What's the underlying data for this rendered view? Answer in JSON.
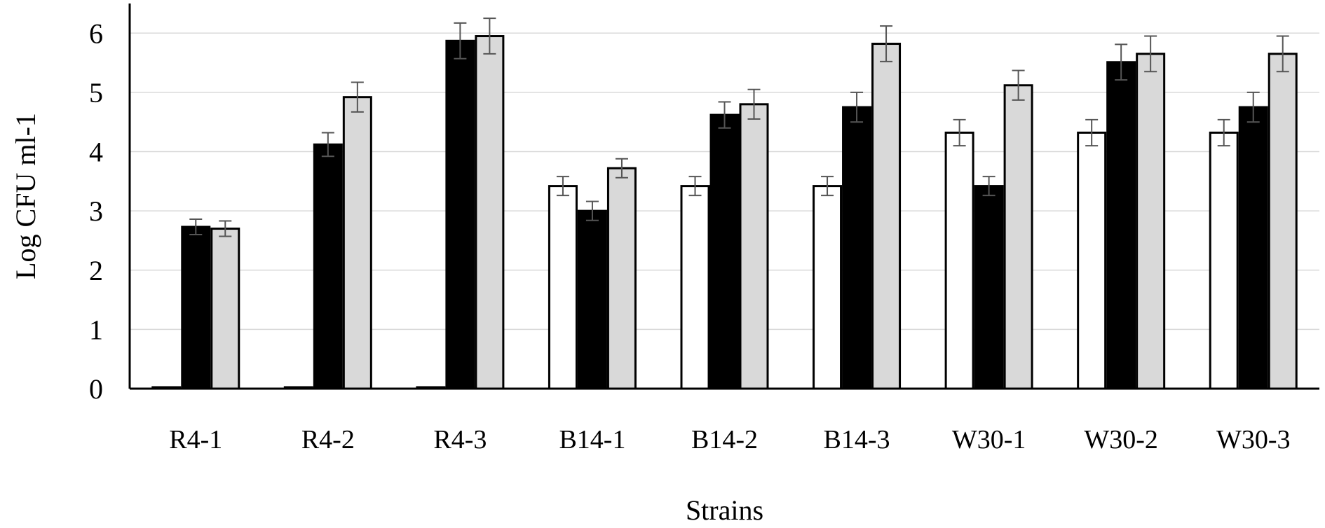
{
  "chart_data": {
    "type": "bar",
    "title": "",
    "xlabel": "Strains",
    "ylabel": "Log CFU ml-1",
    "ylim": [
      0,
      6.5
    ],
    "yticks": [
      "0",
      "1",
      "2",
      "3",
      "4",
      "5",
      "6"
    ],
    "grid": true,
    "legend": "none",
    "categories": [
      "R4-1",
      "R4-2",
      "R4-3",
      "B14-1",
      "B14-2",
      "B14-3",
      "W30-1",
      "W30-2",
      "W30-3"
    ],
    "series": [
      {
        "color": "#ffffff",
        "values": [
          0,
          0,
          0,
          3.42,
          3.42,
          3.42,
          4.32,
          4.32,
          4.32
        ],
        "errors": [
          0,
          0,
          0,
          0.16,
          0.16,
          0.16,
          0.22,
          0.22,
          0.22
        ]
      },
      {
        "color": "#000000",
        "values": [
          2.73,
          4.12,
          5.87,
          3.0,
          4.62,
          4.75,
          3.42,
          5.51,
          4.75
        ],
        "errors": [
          0.13,
          0.2,
          0.3,
          0.16,
          0.22,
          0.25,
          0.16,
          0.3,
          0.25
        ]
      },
      {
        "color": "#d9d9d9",
        "values": [
          2.7,
          4.92,
          5.95,
          3.72,
          4.8,
          5.82,
          5.12,
          5.65,
          5.65
        ],
        "errors": [
          0.13,
          0.25,
          0.3,
          0.16,
          0.25,
          0.3,
          0.25,
          0.3,
          0.3
        ]
      }
    ]
  }
}
